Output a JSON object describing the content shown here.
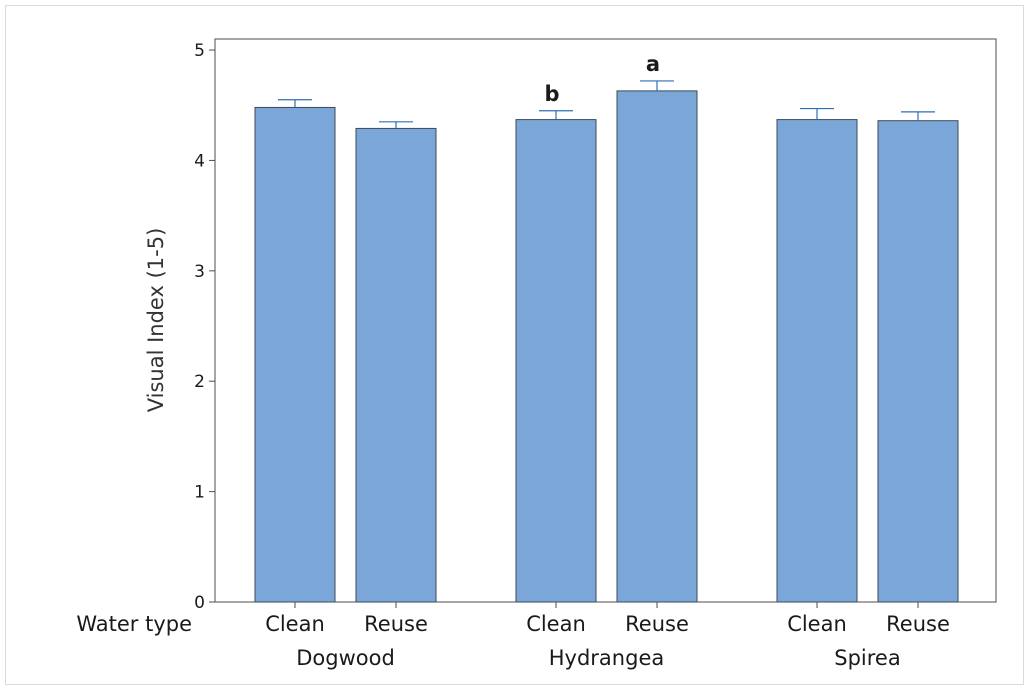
{
  "chart_data": {
    "type": "bar",
    "ylabel": "Visual Index (1-5)",
    "xlabel": "",
    "row_label": "Water type",
    "ylim": [
      0,
      5.1
    ],
    "yticks": [
      0,
      1,
      2,
      3,
      4,
      5
    ],
    "groups": [
      {
        "name": "Dogwood",
        "bars": [
          {
            "category": "Clean",
            "value": 4.48,
            "error": 0.07,
            "label": ""
          },
          {
            "category": "Reuse",
            "value": 4.29,
            "error": 0.06,
            "label": ""
          }
        ]
      },
      {
        "name": "Hydrangea",
        "bars": [
          {
            "category": "Clean",
            "value": 4.37,
            "error": 0.08,
            "label": "b"
          },
          {
            "category": "Reuse",
            "value": 4.63,
            "error": 0.09,
            "label": "a"
          }
        ]
      },
      {
        "name": "Spirea",
        "bars": [
          {
            "category": "Clean",
            "value": 4.37,
            "error": 0.1,
            "label": ""
          },
          {
            "category": "Reuse",
            "value": 4.36,
            "error": 0.08,
            "label": ""
          }
        ]
      }
    ],
    "colors": {
      "bar_fill": "#7BA7D8",
      "bar_stroke": "#3c4a5a",
      "error_bar": "#2f6fb5",
      "axis": "#4d4d4d"
    },
    "grid": false,
    "legend": "none"
  }
}
